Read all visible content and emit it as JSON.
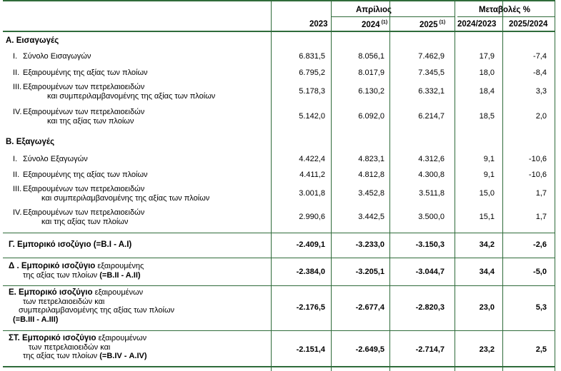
{
  "header": {
    "period": "Απρίλιος",
    "changes": "Μεταβολές %",
    "col_2023": "2023",
    "col_2024": "2024",
    "col_2025": "2025",
    "note_mark": "(1)",
    "col_2024_2023": "2024/2023",
    "col_2025_2024": "2025/2024"
  },
  "imports": {
    "title": "Α. Εισαγωγές",
    "rows": [
      {
        "num": "I.",
        "label": "Σύνολο Εισαγωγών",
        "label2": "",
        "v": [
          "6.831,5",
          "8.056,1",
          "7.462,9",
          "17,9",
          "-7,4"
        ]
      },
      {
        "num": "II.",
        "label": "Εξαιρουμένης της αξίας των πλοίων",
        "label2": "",
        "v": [
          "6.795,2",
          "8.017,9",
          "7.345,5",
          "18,0",
          "-8,4"
        ]
      },
      {
        "num": "III.",
        "label": "Εξαιρουμένων των πετρελαιοειδών",
        "label2": "και συμπεριλαμβανομένης της αξίας των πλοίων",
        "v": [
          "5.178,3",
          "6.130,2",
          "6.332,1",
          "18,4",
          "3,3"
        ]
      },
      {
        "num": "IV.",
        "label": "Εξαιρουμένων των πετρελαιοειδών",
        "label2": "και  της αξίας των πλοίων",
        "v": [
          "5.142,0",
          "6.092,0",
          "6.214,7",
          "18,5",
          "2,0"
        ]
      }
    ]
  },
  "exports": {
    "title": "Β. Εξαγωγές",
    "rows": [
      {
        "num": "I.",
        "label": "Σύνολο Εξαγωγών",
        "label2": "",
        "v": [
          "4.422,4",
          "4.823,1",
          "4.312,6",
          "9,1",
          "-10,6"
        ]
      },
      {
        "num": "II.",
        "label": "Εξαιρουμένης της αξίας των πλοίων",
        "label2": "",
        "v": [
          "4.411,2",
          "4.812,8",
          "4.300,8",
          "9,1",
          "-10,6"
        ]
      },
      {
        "num": "III.",
        "label": "Εξαιρουμένων των πετρελαιοειδών",
        "label2": "και συμπεριλαμβανομένης της αξίας των πλοίων",
        "v": [
          "3.001,8",
          "3.452,8",
          "3.511,8",
          "15,0",
          "1,7"
        ]
      },
      {
        "num": "IV.",
        "label": "Εξαιρουμένων των πετρελαιοειδών",
        "label2": "και της αξίας των πλοίων",
        "v": [
          "2.990,6",
          "3.442,5",
          "3.500,0",
          "15,1",
          "1,7"
        ]
      }
    ]
  },
  "balances": {
    "g": {
      "bold": "Γ. Εμπορικό ισοζύγιο (=Β.Ι - Α.Ι)",
      "v": [
        "-2.409,1",
        "-3.233,0",
        "-3.150,3",
        "34,2",
        "-2,6"
      ]
    },
    "d": {
      "bold": "Δ . Εμπορικό ισοζύγιο",
      "rest": " εξαιρουμένης",
      "line2": "της αξίας των πλοίων ",
      "line2b": "(=Β.ΙΙ - Α.ΙΙ)",
      "v": [
        "-2.384,0",
        "-3.205,1",
        "-3.044,7",
        "34,4",
        "-5,0"
      ]
    },
    "e": {
      "bold": "Ε. Εμπορικό ισοζύγιο",
      "rest": " εξαιρουμένων",
      "line2": "των πετρελαιοειδών και",
      "line3": "συμπεριλαμβανομένης της αξίας των πλοίων",
      "line4": "(=Β.ΙΙΙ - Α.ΙΙΙ)",
      "v": [
        "-2.176,5",
        "-2.677,4",
        "-2.820,3",
        "23,0",
        "5,3"
      ]
    },
    "st": {
      "bold": "ΣΤ. Εμπορικό ισοζύγιο",
      "rest": " εξαιρουμένων",
      "line2": "των πετρελαιοειδών και",
      "line3": "της αξίας των πλοίων ",
      "line3b": "(=Β.IV - Α.IV)",
      "v": [
        "-2.151,4",
        "-2.649,5",
        "-2.714,7",
        "23,2",
        "2,5"
      ]
    }
  },
  "colors": {
    "rule": "#2f6b3a"
  }
}
